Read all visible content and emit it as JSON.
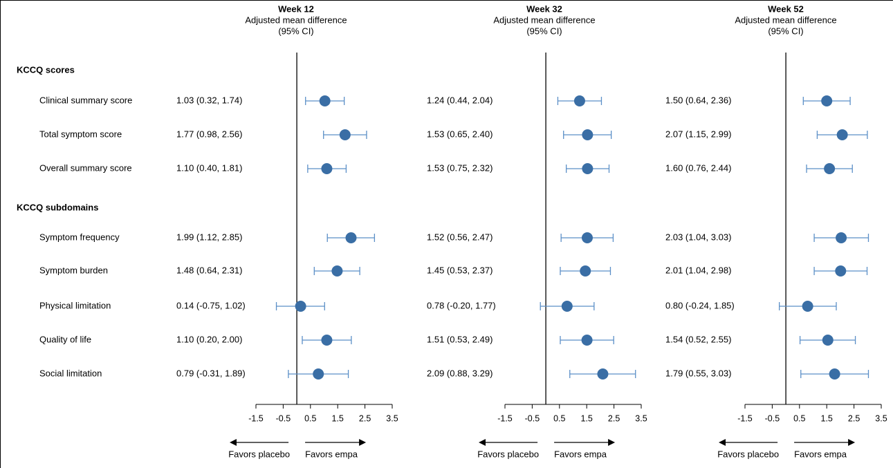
{
  "chart_data": {
    "type": "forest",
    "sections": [
      {
        "id": "scores",
        "title": "KCCQ scores",
        "rows": [
          "Clinical summary score",
          "Total symptom score",
          "Overall summary score"
        ]
      },
      {
        "id": "subdomains",
        "title": "KCCQ subdomains",
        "rows": [
          "Symptom frequency",
          "Symptom burden",
          "Physical limitation",
          "Quality of life",
          "Social limitation"
        ]
      }
    ],
    "x_ticks": [
      -1.5,
      -0.5,
      0.5,
      1.5,
      2.5,
      3.5
    ],
    "x_tick_labels": [
      "-1.5",
      "-0.5",
      "0.5",
      "1.5",
      "2.5",
      "3.5"
    ],
    "reference_line": 0,
    "direction_labels": {
      "left": "Favors placebo",
      "right": "Favors empa"
    },
    "panels": [
      {
        "title": "Week 12",
        "subtitle_line1": "Adjusted mean difference",
        "subtitle_line2": "(95% CI)",
        "estimates": [
          {
            "est": 1.03,
            "lo": 0.32,
            "hi": 1.74,
            "label": "1.03 (0.32, 1.74)"
          },
          {
            "est": 1.77,
            "lo": 0.98,
            "hi": 2.56,
            "label": "1.77 (0.98, 2.56)"
          },
          {
            "est": 1.1,
            "lo": 0.4,
            "hi": 1.81,
            "label": "1.10 (0.40, 1.81)"
          },
          {
            "est": 1.99,
            "lo": 1.12,
            "hi": 2.85,
            "label": "1.99 (1.12, 2.85)"
          },
          {
            "est": 1.48,
            "lo": 0.64,
            "hi": 2.31,
            "label": "1.48 (0.64, 2.31)"
          },
          {
            "est": 0.14,
            "lo": -0.75,
            "hi": 1.02,
            "label": "0.14 (-0.75, 1.02)"
          },
          {
            "est": 1.1,
            "lo": 0.2,
            "hi": 2.0,
            "label": "1.10 (0.20, 2.00)"
          },
          {
            "est": 0.79,
            "lo": -0.31,
            "hi": 1.89,
            "label": "0.79 (-0.31, 1.89)"
          }
        ]
      },
      {
        "title": "Week 32",
        "subtitle_line1": "Adjusted mean difference",
        "subtitle_line2": "(95% CI)",
        "estimates": [
          {
            "est": 1.24,
            "lo": 0.44,
            "hi": 2.04,
            "label": "1.24 (0.44, 2.04)"
          },
          {
            "est": 1.53,
            "lo": 0.65,
            "hi": 2.4,
            "label": "1.53 (0.65, 2.40)"
          },
          {
            "est": 1.53,
            "lo": 0.75,
            "hi": 2.32,
            "label": "1.53 (0.75, 2.32)"
          },
          {
            "est": 1.52,
            "lo": 0.56,
            "hi": 2.47,
            "label": "1.52 (0.56, 2.47)"
          },
          {
            "est": 1.45,
            "lo": 0.53,
            "hi": 2.37,
            "label": "1.45 (0.53, 2.37)"
          },
          {
            "est": 0.78,
            "lo": -0.2,
            "hi": 1.77,
            "label": "0.78 (-0.20, 1.77)"
          },
          {
            "est": 1.51,
            "lo": 0.53,
            "hi": 2.49,
            "label": "1.51 (0.53, 2.49)"
          },
          {
            "est": 2.09,
            "lo": 0.88,
            "hi": 3.29,
            "label": "2.09 (0.88, 3.29)"
          }
        ]
      },
      {
        "title": "Week 52",
        "subtitle_line1": "Adjusted mean difference",
        "subtitle_line2": "(95% CI)",
        "estimates": [
          {
            "est": 1.5,
            "lo": 0.64,
            "hi": 2.36,
            "label": "1.50 (0.64, 2.36)"
          },
          {
            "est": 2.07,
            "lo": 1.15,
            "hi": 2.99,
            "label": "2.07 (1.15, 2.99)"
          },
          {
            "est": 1.6,
            "lo": 0.76,
            "hi": 2.44,
            "label": "1.60 (0.76, 2.44)"
          },
          {
            "est": 2.03,
            "lo": 1.04,
            "hi": 3.03,
            "label": "2.03 (1.04, 3.03)"
          },
          {
            "est": 2.01,
            "lo": 1.04,
            "hi": 2.98,
            "label": "2.01 (1.04, 2.98)"
          },
          {
            "est": 0.8,
            "lo": -0.24,
            "hi": 1.85,
            "label": "0.80 (-0.24, 1.85)"
          },
          {
            "est": 1.54,
            "lo": 0.52,
            "hi": 2.55,
            "label": "1.54 (0.52, 2.55)"
          },
          {
            "est": 1.79,
            "lo": 0.55,
            "hi": 3.03,
            "label": "1.79 (0.55, 3.03)"
          }
        ]
      }
    ],
    "colors": {
      "marker": "#3a6ea5",
      "ci_line": "#5b8fc7",
      "axis": "#000000"
    }
  }
}
